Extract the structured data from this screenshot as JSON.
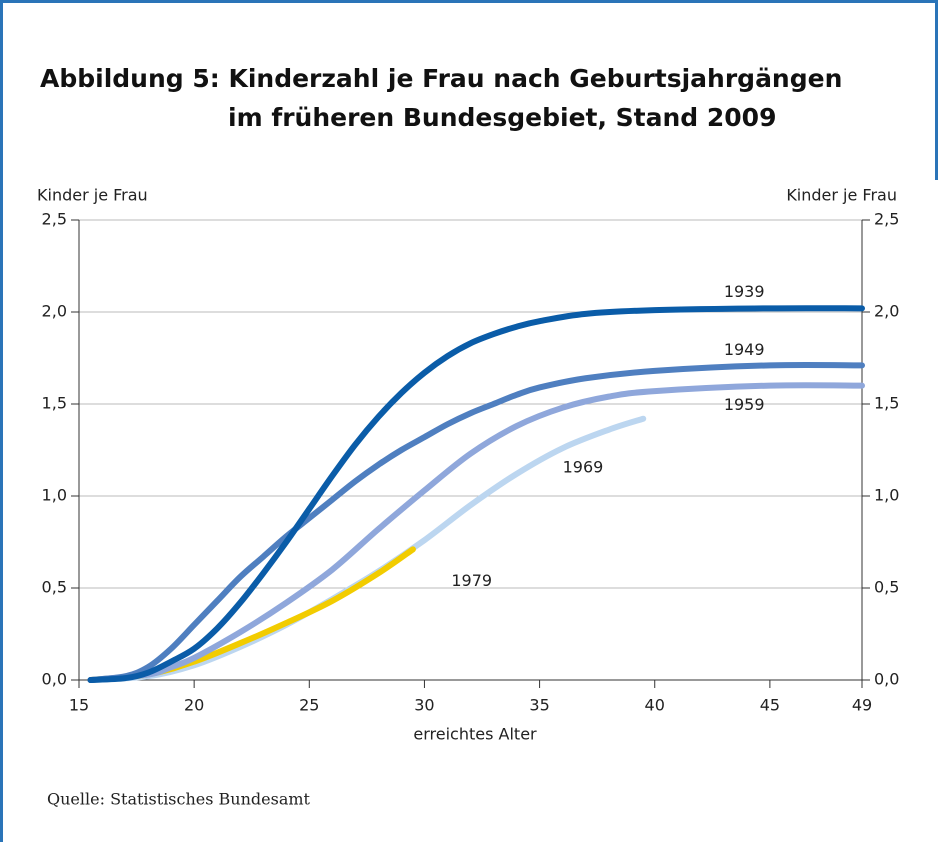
{
  "chart_data": {
    "type": "line",
    "title": [
      "Abbildung 5: Kinderzahl je Frau nach Geburtsjahrgängen",
      "im früheren Bundesgebiet, Stand 2009"
    ],
    "y_label": "Kinder je Frau",
    "y2_label": "Kinder je Frau",
    "x_label": "erreichtes Alter",
    "source": "Quelle: Statistisches Bundesamt",
    "xlim": [
      15,
      49
    ],
    "xticks": [
      15,
      20,
      25,
      30,
      35,
      40,
      45,
      49
    ],
    "ylim": [
      0,
      2.5
    ],
    "yticks": [
      {
        "value": 0,
        "label": "0,0"
      },
      {
        "value": 0.5,
        "label": "0,5"
      },
      {
        "value": 1,
        "label": "1,0"
      },
      {
        "value": 1.5,
        "label": "1,5"
      },
      {
        "value": 2,
        "label": "2,0"
      },
      {
        "value": 2.5,
        "label": "2,5"
      }
    ],
    "y2lim": [
      0,
      2.5
    ],
    "y2ticks": [
      {
        "value": 0,
        "label": "0,0"
      },
      {
        "value": 0.5,
        "label": "0,5"
      },
      {
        "value": 1,
        "label": "1,0"
      },
      {
        "value": 1.5,
        "label": "1,5"
      },
      {
        "value": 2,
        "label": "2,0"
      },
      {
        "value": 2.5,
        "label": "2,5"
      }
    ],
    "grid": true,
    "series": [
      {
        "name": "1969",
        "color": "#bcd6f0",
        "x": [
          15.5,
          18,
          20,
          22,
          24,
          26,
          28,
          30,
          32,
          34,
          36,
          38,
          39.5
        ],
        "values": [
          0,
          0.02,
          0.08,
          0.18,
          0.3,
          0.44,
          0.59,
          0.76,
          0.95,
          1.12,
          1.26,
          1.36,
          1.42
        ]
      },
      {
        "name": "1979",
        "color": "#f2cc00",
        "x": [
          15.5,
          18,
          20,
          22,
          24,
          26,
          28,
          29.5
        ],
        "values": [
          0,
          0.03,
          0.1,
          0.2,
          0.31,
          0.43,
          0.58,
          0.71
        ]
      },
      {
        "name": "1959",
        "color": "#8fa7db",
        "x": [
          15.5,
          18,
          19,
          20,
          22,
          24,
          26,
          28,
          30,
          32,
          34,
          36,
          38,
          40,
          45,
          49
        ],
        "values": [
          0,
          0.03,
          0.07,
          0.12,
          0.26,
          0.42,
          0.6,
          0.82,
          1.03,
          1.23,
          1.38,
          1.48,
          1.54,
          1.57,
          1.6,
          1.6
        ]
      },
      {
        "name": "1949",
        "color": "#4f7fc0",
        "x": [
          15.5,
          17,
          18,
          19,
          20,
          21,
          22,
          23,
          24,
          25,
          26,
          27,
          28,
          29,
          30,
          31,
          32,
          33,
          34,
          35,
          37,
          40,
          45,
          49
        ],
        "values": [
          0,
          0.02,
          0.07,
          0.17,
          0.3,
          0.43,
          0.56,
          0.67,
          0.78,
          0.88,
          0.98,
          1.08,
          1.17,
          1.25,
          1.32,
          1.39,
          1.45,
          1.5,
          1.55,
          1.59,
          1.64,
          1.68,
          1.71,
          1.71
        ]
      },
      {
        "name": "1939",
        "color": "#0a5ca8",
        "x": [
          15.5,
          17,
          18,
          19,
          20,
          21,
          22,
          23,
          24,
          25,
          26,
          27,
          28,
          29,
          30,
          31,
          32,
          33,
          34,
          35,
          37,
          40,
          45,
          49
        ],
        "values": [
          0,
          0.01,
          0.04,
          0.1,
          0.17,
          0.28,
          0.42,
          0.58,
          0.75,
          0.93,
          1.11,
          1.28,
          1.43,
          1.56,
          1.67,
          1.76,
          1.83,
          1.88,
          1.92,
          1.95,
          1.99,
          2.01,
          2.02,
          2.02
        ]
      }
    ]
  }
}
